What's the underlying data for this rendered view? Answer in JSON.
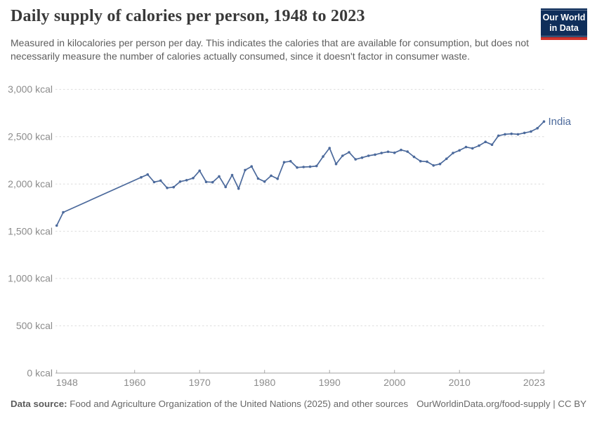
{
  "header": {
    "title": "Daily supply of calories per person, 1948 to 2023",
    "subtitle": "Measured in kilocalories per person per day. This indicates the calories that are available for consumption, but does not necessarily measure the number of calories actually consumed, since it doesn't factor in consumer waste.",
    "logo": {
      "line1": "Our World",
      "line2": "in Data",
      "bg_color": "#0F2E5A",
      "stripe_color": "#D0342C"
    }
  },
  "footer": {
    "source_label": "Data source:",
    "source_text": " Food and Agriculture Organization of the United Nations (2025) and other sources",
    "link_text": "OurWorldinData.org/food-supply | CC BY"
  },
  "chart_data": {
    "type": "line",
    "title": "Daily supply of calories per person, 1948 to 2023",
    "xlabel": "",
    "ylabel": "",
    "xlim": [
      1948,
      2023
    ],
    "ylim": [
      0,
      3000
    ],
    "grid": "horizontal dashed gridlines, solid bottom axis",
    "legend_position": "end-of-line label",
    "x_ticks": [
      1948,
      1960,
      1970,
      1980,
      1990,
      2000,
      2010,
      2023
    ],
    "x_tick_labels": [
      "1948",
      "1960",
      "1970",
      "1980",
      "1990",
      "2000",
      "2010",
      "2023"
    ],
    "y_ticks": [
      0,
      500,
      1000,
      1500,
      2000,
      2500,
      3000
    ],
    "y_tick_labels": [
      "0 kcal",
      "500 kcal",
      "1,000 kcal",
      "1,500 kcal",
      "2,000 kcal",
      "2,500 kcal",
      "3,000 kcal"
    ],
    "unit": "kcal per person per day",
    "series": [
      {
        "name": "India",
        "color": "#4C6A9C",
        "note": "no data between 1949 and 1961; straight connecting segment",
        "points": [
          [
            1948,
            1560
          ],
          [
            1949,
            1700
          ],
          [
            1961,
            2070
          ],
          [
            1962,
            2100
          ],
          [
            1963,
            2020
          ],
          [
            1964,
            2035
          ],
          [
            1965,
            1958
          ],
          [
            1966,
            1966
          ],
          [
            1967,
            2025
          ],
          [
            1968,
            2040
          ],
          [
            1969,
            2062
          ],
          [
            1970,
            2140
          ],
          [
            1971,
            2022
          ],
          [
            1972,
            2018
          ],
          [
            1973,
            2080
          ],
          [
            1974,
            1968
          ],
          [
            1975,
            2094
          ],
          [
            1976,
            1951
          ],
          [
            1977,
            2147
          ],
          [
            1978,
            2185
          ],
          [
            1979,
            2057
          ],
          [
            1980,
            2025
          ],
          [
            1981,
            2087
          ],
          [
            1982,
            2055
          ],
          [
            1983,
            2230
          ],
          [
            1984,
            2240
          ],
          [
            1985,
            2174
          ],
          [
            1986,
            2179
          ],
          [
            1987,
            2182
          ],
          [
            1988,
            2190
          ],
          [
            1989,
            2290
          ],
          [
            1990,
            2380
          ],
          [
            1991,
            2211
          ],
          [
            1992,
            2298
          ],
          [
            1993,
            2335
          ],
          [
            1994,
            2260
          ],
          [
            1995,
            2278
          ],
          [
            1996,
            2298
          ],
          [
            1997,
            2310
          ],
          [
            1998,
            2327
          ],
          [
            1999,
            2340
          ],
          [
            2000,
            2330
          ],
          [
            2001,
            2360
          ],
          [
            2002,
            2342
          ],
          [
            2003,
            2286
          ],
          [
            2004,
            2241
          ],
          [
            2005,
            2236
          ],
          [
            2006,
            2196
          ],
          [
            2007,
            2211
          ],
          [
            2008,
            2266
          ],
          [
            2009,
            2327
          ],
          [
            2010,
            2355
          ],
          [
            2011,
            2390
          ],
          [
            2012,
            2377
          ],
          [
            2013,
            2405
          ],
          [
            2014,
            2445
          ],
          [
            2015,
            2415
          ],
          [
            2016,
            2510
          ],
          [
            2017,
            2525
          ],
          [
            2018,
            2530
          ],
          [
            2019,
            2525
          ],
          [
            2020,
            2540
          ],
          [
            2021,
            2555
          ],
          [
            2022,
            2590
          ],
          [
            2023,
            2660
          ]
        ]
      }
    ]
  },
  "colors": {
    "line": "#4C6A9C",
    "gridline": "#DCDCDC",
    "axis": "#A6A6A6",
    "tick_label": "#8C8C8C",
    "background": "#FFFFFF"
  }
}
